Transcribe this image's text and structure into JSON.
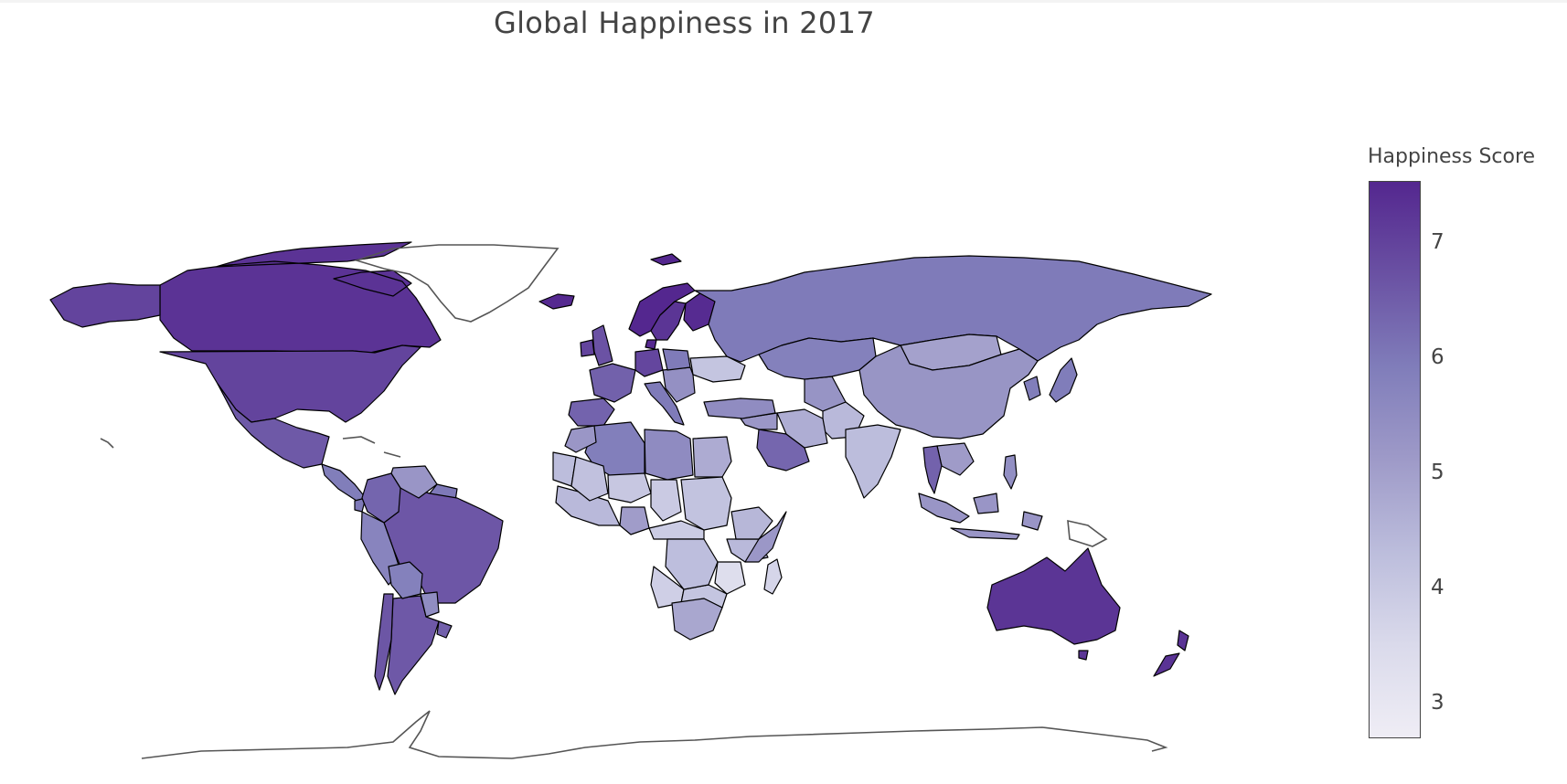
{
  "title": "Global Happiness in 2017",
  "colorbar": {
    "title": "Happiness Score",
    "min": 2.7,
    "max": 7.54,
    "ticks": [
      "3",
      "4",
      "5",
      "6",
      "7"
    ],
    "colors": [
      "#efedf5",
      "#dadaeb",
      "#bcbddc",
      "#9e9ac8",
      "#807dba",
      "#6a51a3",
      "#54278f"
    ]
  },
  "land_outline_color": "#000000",
  "no_data_outline_color": "#555555",
  "chart_data": {
    "type": "choropleth",
    "title": "Global Happiness in 2017",
    "colorbar_title": "Happiness Score",
    "zmin": 2.7,
    "zmax": 7.54,
    "regions": [
      {
        "region": "Canada",
        "value": 7.3
      },
      {
        "region": "United States",
        "value": 6.99
      },
      {
        "region": "Mexico",
        "value": 6.58
      },
      {
        "region": "Brazil",
        "value": 6.64
      },
      {
        "region": "Argentina",
        "value": 6.6
      },
      {
        "region": "Chile",
        "value": 6.65
      },
      {
        "region": "Colombia",
        "value": 6.36
      },
      {
        "region": "Peru",
        "value": 5.72
      },
      {
        "region": "Venezuela",
        "value": 5.25
      },
      {
        "region": "Bolivia",
        "value": 5.82
      },
      {
        "region": "Paraguay",
        "value": 5.49
      },
      {
        "region": "Uruguay",
        "value": 6.45
      },
      {
        "region": "Greenland",
        "value": null
      },
      {
        "region": "Iceland",
        "value": 7.5
      },
      {
        "region": "Norway",
        "value": 7.54
      },
      {
        "region": "Sweden",
        "value": 7.28
      },
      {
        "region": "Finland",
        "value": 7.47
      },
      {
        "region": "Denmark",
        "value": 7.52
      },
      {
        "region": "United Kingdom",
        "value": 6.71
      },
      {
        "region": "Ireland",
        "value": 6.98
      },
      {
        "region": "Germany",
        "value": 6.95
      },
      {
        "region": "France",
        "value": 6.44
      },
      {
        "region": "Spain",
        "value": 6.4
      },
      {
        "region": "Italy",
        "value": 5.96
      },
      {
        "region": "Poland",
        "value": 5.97
      },
      {
        "region": "Ukraine",
        "value": 4.1
      },
      {
        "region": "Russia",
        "value": 5.96
      },
      {
        "region": "Kazakhstan",
        "value": 5.82
      },
      {
        "region": "Mongolia",
        "value": 4.96
      },
      {
        "region": "China",
        "value": 5.27
      },
      {
        "region": "India",
        "value": 4.32
      },
      {
        "region": "Japan",
        "value": 5.92
      },
      {
        "region": "Thailand",
        "value": 6.42
      },
      {
        "region": "Indonesia",
        "value": 5.26
      },
      {
        "region": "Philippines",
        "value": 5.43
      },
      {
        "region": "Saudi Arabia",
        "value": 6.34
      },
      {
        "region": "Iran",
        "value": 4.69
      },
      {
        "region": "Turkey",
        "value": 5.5
      },
      {
        "region": "Egypt",
        "value": 4.73
      },
      {
        "region": "Libya",
        "value": 5.53
      },
      {
        "region": "Algeria",
        "value": 5.87
      },
      {
        "region": "Morocco",
        "value": 5.23
      },
      {
        "region": "Sudan",
        "value": 4.14
      },
      {
        "region": "Ethiopia",
        "value": 4.46
      },
      {
        "region": "Nigeria",
        "value": 5.07
      },
      {
        "region": "Niger",
        "value": 4.03
      },
      {
        "region": "Chad",
        "value": 3.94
      },
      {
        "region": "Mali",
        "value": 4.19
      },
      {
        "region": "DR Congo",
        "value": 4.28
      },
      {
        "region": "Tanzania",
        "value": 3.35
      },
      {
        "region": "South Africa",
        "value": 4.83
      },
      {
        "region": "Madagascar",
        "value": 3.64
      },
      {
        "region": "Australia",
        "value": 7.28
      },
      {
        "region": "New Zealand",
        "value": 7.31
      },
      {
        "region": "Papua New Guinea",
        "value": null
      }
    ]
  }
}
